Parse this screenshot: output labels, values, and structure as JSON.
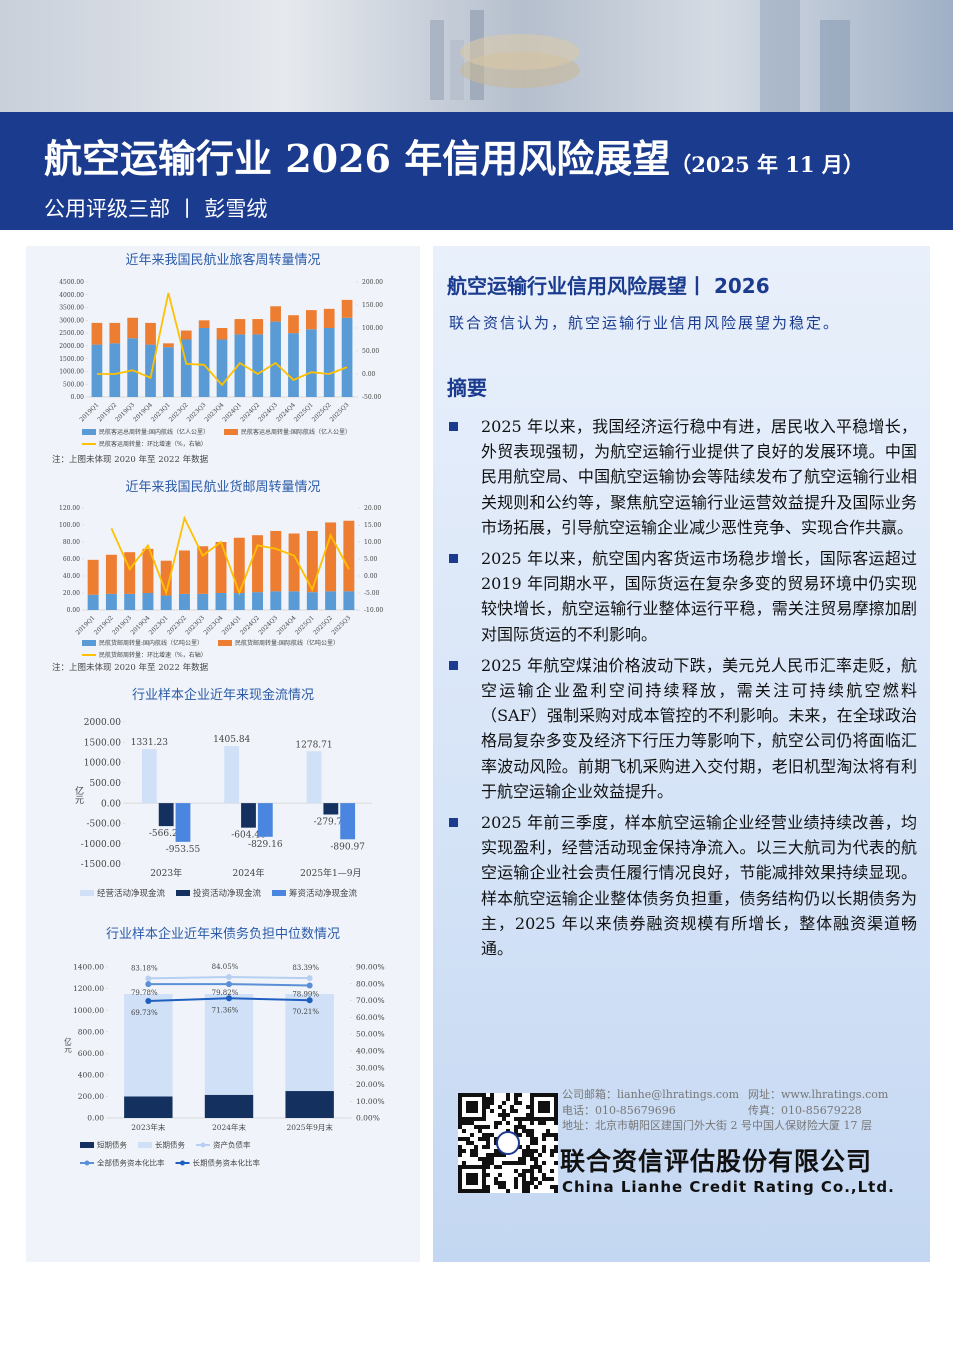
{
  "header": {
    "title": "航空运输行业 2026 年信用风险展望",
    "date": "（2025 年 11 月）",
    "department": "公用评级三部 丨 彭雪绒"
  },
  "outlook": {
    "title": "航空运输行业信用风险展望丨 2026",
    "statement": "联合资信认为，航空运输行业信用风险展望为稳定。"
  },
  "summary": {
    "heading": "摘要",
    "items": [
      "2025 年以来，我国经济运行稳中有进，居民收入平稳增长，外贸表现强韧，为航空运输行业提供了良好的发展环境。中国民用航空局、中国航空运输协会等陆续发布了航空运输行业相关规则和公约等，聚焦航空运输行业运营效益提升及国际业务市场拓展，引导航空运输企业减少恶性竞争、实现合作共赢。",
      "2025 年以来，航空国内客货运市场稳步增长，国际客运超过 2019 年同期水平，国际货运在复杂多变的贸易环境中仍实现较快增长，航空运输行业整体运行平稳，需关注贸易摩擦加剧对国际货运的不利影响。",
      "2025 年航空煤油价格波动下跌，美元兑人民币汇率走贬，航空运输企业盈利空间持续释放，需关注可持续航空燃料（SAF）强制采购对成本管控的不利影响。未来，在全球政治格局复杂多变及经济下行压力等影响下，航空公司仍将面临汇率波动风险。前期飞机采购进入交付期，老旧机型淘汰将有利于航空运输企业效益提升。",
      "2025 年前三季度，样本航空运输企业经营业绩持续改善，均实现盈利，经营活动现金保持净流入。以三大航司为代表的航空运输企业社会责任履行情况良好，节能减排效果持续显现。样本航空运输企业整体债务负担重，债务结构仍以长期债务为主，2025 年以来债券融资规模有所增长，整体融资渠道畅通。"
    ]
  },
  "footer": {
    "email": "公司邮箱：lianhe@lhratings.com",
    "website": "网址：www.lhratings.com",
    "phone": "电话：010-85679696",
    "fax": "传真：010-85679228",
    "address": "地址：北京市朝阳区建国门外大街 2 号中国人保财险大厦 17 层",
    "company": "联合资信评估股份有限公司",
    "company_en": "China Lianhe Credit Rating Co.,Ltd."
  },
  "chart_data": [
    {
      "type": "bar",
      "title": "近年来我国民航业旅客周转量情况",
      "stacked": true,
      "grid": false,
      "categories": [
        "2019Q1",
        "2019Q2",
        "2019Q3",
        "2019Q4",
        "2023Q1",
        "2023Q2",
        "2023Q3",
        "2023Q4",
        "2024Q1",
        "2024Q2",
        "2024Q3",
        "2024Q4",
        "2025Q1",
        "2025Q2",
        "2025Q3"
      ],
      "series": [
        {
          "name": "民航客运总周转量:国内航线（亿人公里）",
          "color": "#5b9bd5",
          "values": [
            2050,
            2100,
            2300,
            2050,
            1950,
            2250,
            2700,
            2250,
            2450,
            2450,
            2950,
            2500,
            2650,
            2700,
            3100
          ]
        },
        {
          "name": "民航客运总周转量:国际航线（亿人公里）",
          "color": "#ed7d31",
          "values": [
            850,
            800,
            800,
            850,
            150,
            350,
            300,
            450,
            600,
            600,
            600,
            700,
            750,
            750,
            700
          ]
        },
        {
          "name": "民航客运周转量：环比增速（%，右轴）",
          "color": "#ffc000",
          "axis": "y2",
          "values": [
            0,
            0,
            8,
            -8,
            176,
            22,
            20,
            -24,
            24,
            0,
            24,
            -13,
            4,
            0,
            15
          ]
        }
      ],
      "ylim": [
        0,
        4500
      ],
      "yticks": [
        {
          "value": 0,
          "label": "0.00"
        },
        {
          "value": 500,
          "label": "500.00"
        },
        {
          "value": 1000,
          "label": "1000.00"
        },
        {
          "value": 1500,
          "label": "1500.00"
        },
        {
          "value": 2000,
          "label": "2000.00"
        },
        {
          "value": 2500,
          "label": "2500.00"
        },
        {
          "value": 3000,
          "label": "3000.00"
        },
        {
          "value": 3500,
          "label": "3500.00"
        },
        {
          "value": 4000,
          "label": "4000.00"
        },
        {
          "value": 4500,
          "label": "4500.00"
        }
      ],
      "y2lim": [
        -50,
        200
      ],
      "y2ticks": [
        {
          "value": -50,
          "label": "-50.00"
        },
        {
          "value": 0,
          "label": "0.00"
        },
        {
          "value": 50,
          "label": "50.00"
        },
        {
          "value": 100,
          "label": "100.00"
        },
        {
          "value": 150,
          "label": "150.00"
        },
        {
          "value": 200,
          "label": "200.00"
        }
      ],
      "note": "注：上图未体现 2020 年至 2022 年数据"
    },
    {
      "type": "bar",
      "title": "近年来我国民航业货邮周转量情况",
      "stacked": true,
      "grid": false,
      "categories": [
        "2019Q1",
        "2019Q2",
        "2019Q3",
        "2019Q4",
        "2023Q1",
        "2023Q2",
        "2023Q3",
        "2023Q4",
        "2024Q1",
        "2024Q2",
        "2024Q3",
        "2024Q4",
        "2025Q1",
        "2025Q2",
        "2025Q3"
      ],
      "series": [
        {
          "name": "民航货邮周转量:国内航线（亿吨公里）",
          "color": "#5b9bd5",
          "values": [
            18,
            19,
            19,
            20,
            17,
            19,
            19,
            20,
            20,
            21,
            22,
            22,
            21,
            22,
            22
          ]
        },
        {
          "name": "民航货邮周转量:国际航线（亿吨公里）",
          "color": "#ed7d31",
          "values": [
            41,
            46,
            49,
            52,
            41,
            51,
            56,
            60,
            65,
            67,
            71,
            68,
            72,
            81,
            83
          ]
        },
        {
          "name": "民航货邮周转量：环比增速（%，右轴）",
          "color": "#ffc000",
          "axis": "y2",
          "values": [
            null,
            14,
            2,
            9,
            -5,
            17,
            6,
            10,
            -5,
            9,
            8,
            6,
            -4,
            12,
            2
          ]
        }
      ],
      "ylim": [
        0,
        120
      ],
      "yticks": [
        {
          "value": 0,
          "label": "0.00"
        },
        {
          "value": 20,
          "label": "20.00"
        },
        {
          "value": 40,
          "label": "40.00"
        },
        {
          "value": 60,
          "label": "60.00"
        },
        {
          "value": 80,
          "label": "80.00"
        },
        {
          "value": 100,
          "label": "100.00"
        },
        {
          "value": 120,
          "label": "120.00"
        }
      ],
      "y2lim": [
        -10,
        20
      ],
      "y2ticks": [
        {
          "value": -10,
          "label": "-10.00"
        },
        {
          "value": -5,
          "label": "-5.00"
        },
        {
          "value": 0,
          "label": "0.00"
        },
        {
          "value": 5,
          "label": "5.00"
        },
        {
          "value": 10,
          "label": "10.00"
        },
        {
          "value": 15,
          "label": "15.00"
        },
        {
          "value": 20,
          "label": "20.00"
        }
      ],
      "note": "注：上图未体现 2020 年至 2022 年数据"
    },
    {
      "type": "bar",
      "title": "行业样本企业近年来现金流情况",
      "stacked": false,
      "grid": false,
      "ylabel": "亿元",
      "categories": [
        "2023年",
        "2024年",
        "2025年1—9月"
      ],
      "series": [
        {
          "name": "经营活动净现金流",
          "color": "#cfe0f7",
          "values": [
            1331.23,
            1405.84,
            1278.71
          ]
        },
        {
          "name": "投资活动净现金流",
          "color": "#14305e",
          "values": [
            -566.27,
            -604.46,
            -279.73
          ]
        },
        {
          "name": "筹资活动净现金流",
          "color": "#4a86e0",
          "values": [
            -953.55,
            -829.16,
            -890.97
          ]
        }
      ],
      "ylim": [
        -1500,
        2000
      ],
      "yticks": [
        {
          "value": -1500,
          "label": "-1500.00"
        },
        {
          "value": -1000,
          "label": "-1000.00"
        },
        {
          "value": -500,
          "label": "-500.00"
        },
        {
          "value": 0,
          "label": "0.00"
        },
        {
          "value": 500,
          "label": "500.00"
        },
        {
          "value": 1000,
          "label": "1000.00"
        },
        {
          "value": 1500,
          "label": "1500.00"
        },
        {
          "value": 2000,
          "label": "2000.00"
        }
      ]
    },
    {
      "type": "bar",
      "title": "行业样本企业近年来债务负担中位数情况",
      "stacked": true,
      "grid": false,
      "ylabel": "亿元",
      "markers": true,
      "categories": [
        "2023年末",
        "2024年末",
        "2025年9月末"
      ],
      "series": [
        {
          "name": "短期债务",
          "color": "#14305e",
          "values": [
            200,
            215,
            250
          ]
        },
        {
          "name": "长期债务",
          "color": "#cfe0f7",
          "values": [
            950,
            935,
            900
          ]
        },
        {
          "name": "资产负债率",
          "color": "#b7cff0",
          "axis": "y2",
          "values": [
            83.18,
            84.05,
            83.39
          ],
          "value_labels": [
            "83.18%",
            "84.05%",
            "83.39%"
          ]
        },
        {
          "name": "全部债务资本化比率",
          "color": "#5b8fd6",
          "axis": "y2",
          "values": [
            79.78,
            79.82,
            78.99
          ],
          "value_labels": [
            "79.78%",
            "79.82%",
            "78.99%"
          ]
        },
        {
          "name": "长期债务资本化比率",
          "color": "#1f5fbf",
          "axis": "y2",
          "values": [
            69.73,
            71.36,
            70.21
          ],
          "value_labels": [
            "69.73%",
            "71.36%",
            "70.21%"
          ]
        }
      ],
      "ylim": [
        0,
        1400
      ],
      "yticks": [
        {
          "value": 0,
          "label": "0.00"
        },
        {
          "value": 200,
          "label": "200.00"
        },
        {
          "value": 400,
          "label": "400.00"
        },
        {
          "value": 600,
          "label": "600.00"
        },
        {
          "value": 800,
          "label": "800.00"
        },
        {
          "value": 1000,
          "label": "1000.00"
        },
        {
          "value": 1200,
          "label": "1200.00"
        },
        {
          "value": 1400,
          "label": "1400.00"
        }
      ],
      "y2lim": [
        0,
        90
      ],
      "y2ticks": [
        {
          "value": 0,
          "label": "0.00%"
        },
        {
          "value": 10,
          "label": "10.00%"
        },
        {
          "value": 20,
          "label": "20.00%"
        },
        {
          "value": 30,
          "label": "30.00%"
        },
        {
          "value": 40,
          "label": "40.00%"
        },
        {
          "value": 50,
          "label": "50.00%"
        },
        {
          "value": 60,
          "label": "60.00%"
        },
        {
          "value": 70,
          "label": "70.00%"
        },
        {
          "value": 80,
          "label": "80.00%"
        },
        {
          "value": 90,
          "label": "90.00%"
        }
      ]
    }
  ]
}
